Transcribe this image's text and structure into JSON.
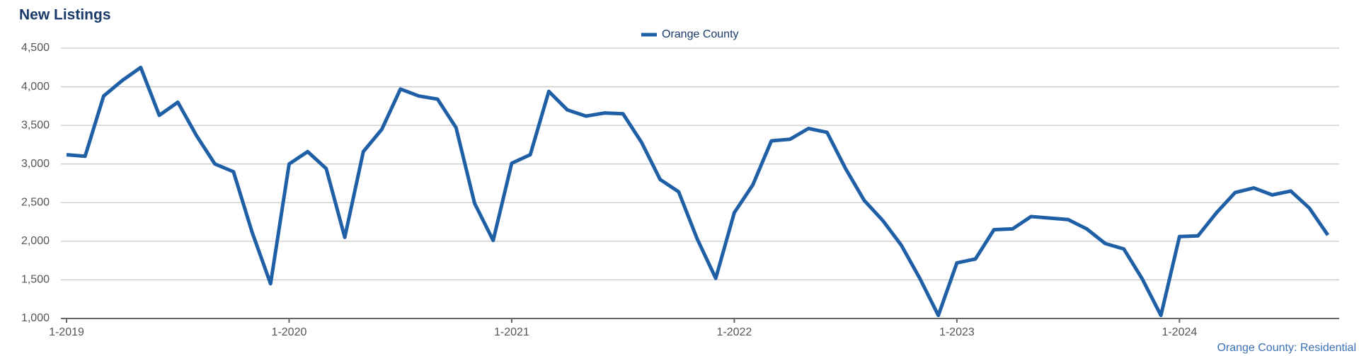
{
  "chart_data": {
    "type": "line",
    "title": "New Listings",
    "footer": "Orange County: Residential",
    "categories": [
      "1-2019",
      null,
      null,
      null,
      null,
      null,
      null,
      null,
      null,
      null,
      null,
      null,
      "1-2020",
      null,
      null,
      null,
      null,
      null,
      null,
      null,
      null,
      null,
      null,
      null,
      "1-2021",
      null,
      null,
      null,
      null,
      null,
      null,
      null,
      null,
      null,
      null,
      null,
      "1-2022",
      null,
      null,
      null,
      null,
      null,
      null,
      null,
      null,
      null,
      null,
      null,
      "1-2023",
      null,
      null,
      null,
      null,
      null,
      null,
      null,
      null,
      null,
      null,
      null,
      "1-2024",
      null,
      null,
      null,
      null,
      null,
      null,
      null,
      null
    ],
    "series": [
      {
        "name": "Orange County",
        "color": "#1f5fa6",
        "values": [
          3120,
          3100,
          3880,
          4080,
          4250,
          3630,
          3800,
          3370,
          3000,
          2900,
          2120,
          1450,
          3000,
          3160,
          2940,
          2050,
          3160,
          3450,
          3970,
          3880,
          3840,
          3470,
          2490,
          2010,
          3010,
          3120,
          3940,
          3700,
          3620,
          3660,
          3650,
          3280,
          2800,
          2640,
          2030,
          1520,
          2370,
          2730,
          3300,
          3320,
          3460,
          3410,
          2940,
          2530,
          2270,
          1950,
          1520,
          1040,
          1720,
          1770,
          2150,
          2160,
          2320,
          2300,
          2280,
          2160,
          1970,
          1900,
          1510,
          1040,
          2060,
          2070,
          2370,
          2630,
          2690,
          2600,
          2650,
          2430,
          2080
        ]
      }
    ],
    "ylim": [
      1000,
      4500
    ],
    "yticks": [
      {
        "value": 1000,
        "label": "1,000"
      },
      {
        "value": 1500,
        "label": "1,500"
      },
      {
        "value": 2000,
        "label": "2,000"
      },
      {
        "value": 2500,
        "label": "2,500"
      },
      {
        "value": 3000,
        "label": "3,000"
      },
      {
        "value": 3500,
        "label": "3,500"
      },
      {
        "value": 4000,
        "label": "4,000"
      },
      {
        "value": 4500,
        "label": "4,500"
      }
    ],
    "grid": true,
    "legend": "top"
  }
}
